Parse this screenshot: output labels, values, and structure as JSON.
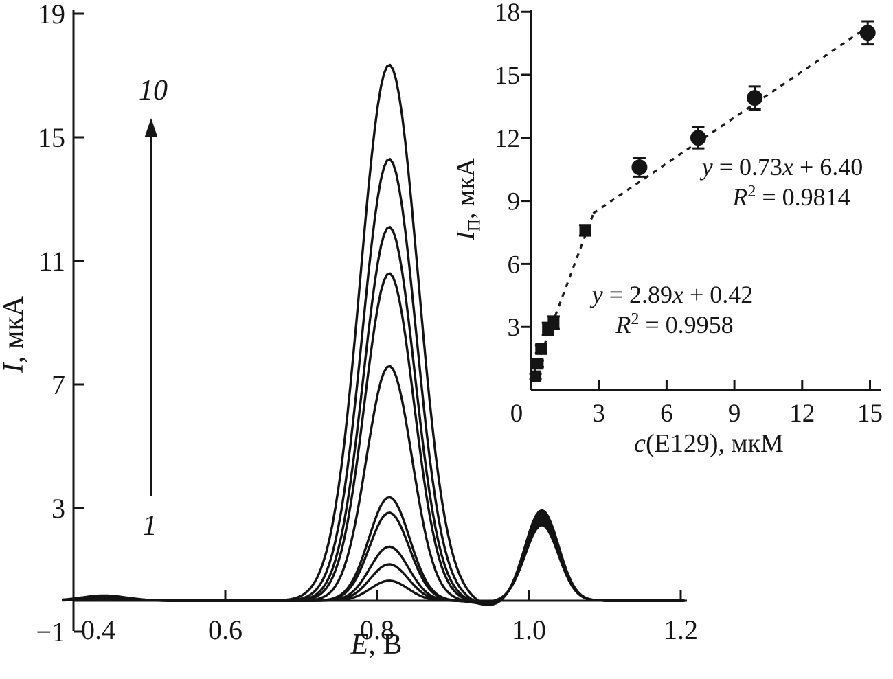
{
  "figure": {
    "background": "#ffffff",
    "ink_color": "#161616",
    "annotations": {
      "first_curve_label": "1",
      "last_curve_label": "10"
    },
    "labels": {
      "main_y_var": "I",
      "main_y_rest": ", мкА",
      "main_x_var": "E",
      "main_x_rest": ", В",
      "inset_y_var": "I",
      "inset_y_sub": "П",
      "inset_y_rest": ", мкА",
      "inset_x_var": "c",
      "inset_x_rest": "(E129), мкМ"
    },
    "equations": {
      "high": {
        "v": "y",
        "mid": " = 0.73",
        "xv": "x",
        "tail": " + 6.40",
        "r": "R",
        "rsup": "2",
        "rtail": " = 0.9814"
      },
      "low": {
        "v": "y",
        "mid": " = 2.89",
        "xv": "x",
        "tail": " + 0.42",
        "r": "R",
        "rsup": "2",
        "rtail": " = 0.9958"
      }
    }
  },
  "chart_data": [
    {
      "id": "voltammograms",
      "type": "line",
      "title": "Differential pulse voltammograms of E129, curves 1-10 with increasing concentration",
      "xlabel": "E, В",
      "ylabel": "I, мкА",
      "xlim": [
        0.385,
        1.205
      ],
      "ylim": [
        -1,
        19
      ],
      "grid": false,
      "x_ticks": [
        0.6,
        0.8,
        1.0,
        1.2
      ],
      "x_tick_labels": [
        "0.6",
        "0.8",
        "1.0",
        "1.2"
      ],
      "x_first_tick_value": 0.4,
      "x_first_tick_label": "0.4",
      "y_ticks": [
        -1,
        3,
        7,
        11,
        15,
        19
      ],
      "y_tick_labels": [
        "−1",
        "3",
        "7",
        "11",
        "15",
        "19"
      ],
      "peak1": {
        "center_V": 0.816
      },
      "peak2": {
        "center_V": 1.017,
        "sigma_V": 0.022
      },
      "curves": [
        {
          "n": 1,
          "peak_uA": 0.65,
          "peak2_uA": 2.45
        },
        {
          "n": 2,
          "peak_uA": 1.18,
          "peak2_uA": 2.5
        },
        {
          "n": 3,
          "peak_uA": 1.75,
          "peak2_uA": 2.56
        },
        {
          "n": 4,
          "peak_uA": 2.85,
          "peak2_uA": 2.61
        },
        {
          "n": 5,
          "peak_uA": 3.35,
          "peak2_uA": 2.66
        },
        {
          "n": 6,
          "peak_uA": 7.6,
          "peak2_uA": 2.72
        },
        {
          "n": 7,
          "peak_uA": 10.6,
          "peak2_uA": 2.77
        },
        {
          "n": 8,
          "peak_uA": 12.1,
          "peak2_uA": 2.82
        },
        {
          "n": 9,
          "peak_uA": 14.3,
          "peak2_uA": 2.88
        },
        {
          "n": 10,
          "peak_uA": 17.35,
          "peak2_uA": 2.93
        }
      ],
      "arrow": {
        "from_label": "1",
        "to_label": "10",
        "direction": "up"
      }
    },
    {
      "id": "calibration",
      "type": "scatter",
      "title": "Calibration plot of peak current vs E129 concentration",
      "xlabel": "c(E129), мкМ",
      "ylabel": "Iп, мкА",
      "xlim": [
        0,
        15.5
      ],
      "ylim": [
        0,
        18.3
      ],
      "grid": false,
      "x_ticks": [
        0,
        3,
        6,
        9,
        12,
        15
      ],
      "x_tick_labels": [
        "0",
        "3",
        "6",
        "9",
        "12",
        "15"
      ],
      "y_ticks": [
        3,
        6,
        9,
        12,
        15,
        18
      ],
      "y_tick_labels": [
        "3",
        "6",
        "9",
        "12",
        "15",
        "18"
      ],
      "points": [
        {
          "x": 0.2,
          "y": 0.65,
          "err": 0.12
        },
        {
          "x": 0.3,
          "y": 1.25,
          "err": 0.15
        },
        {
          "x": 0.45,
          "y": 1.95,
          "err": 0.18
        },
        {
          "x": 0.75,
          "y": 2.9,
          "err": 0.3
        },
        {
          "x": 1.0,
          "y": 3.2,
          "err": 0.3
        },
        {
          "x": 2.4,
          "y": 7.6,
          "err": 0.25
        },
        {
          "x": 4.8,
          "y": 10.6,
          "err": 0.45
        },
        {
          "x": 7.4,
          "y": 12.0,
          "err": 0.5
        },
        {
          "x": 9.9,
          "y": 13.9,
          "err": 0.55
        },
        {
          "x": 14.9,
          "y": 17.0,
          "err": 0.55
        }
      ],
      "fits": [
        {
          "equation": "y = 2.89x + 0.42",
          "r_squared": 0.9958,
          "slope": 2.89,
          "intercept": 0.42,
          "x_range": [
            0.12,
            2.75
          ],
          "style": "dashed"
        },
        {
          "equation": "y = 0.73x + 6.40",
          "r_squared": 0.9814,
          "slope": 0.73,
          "intercept": 6.4,
          "x_range": [
            2.75,
            14.9
          ],
          "style": "dashed"
        }
      ]
    }
  ]
}
